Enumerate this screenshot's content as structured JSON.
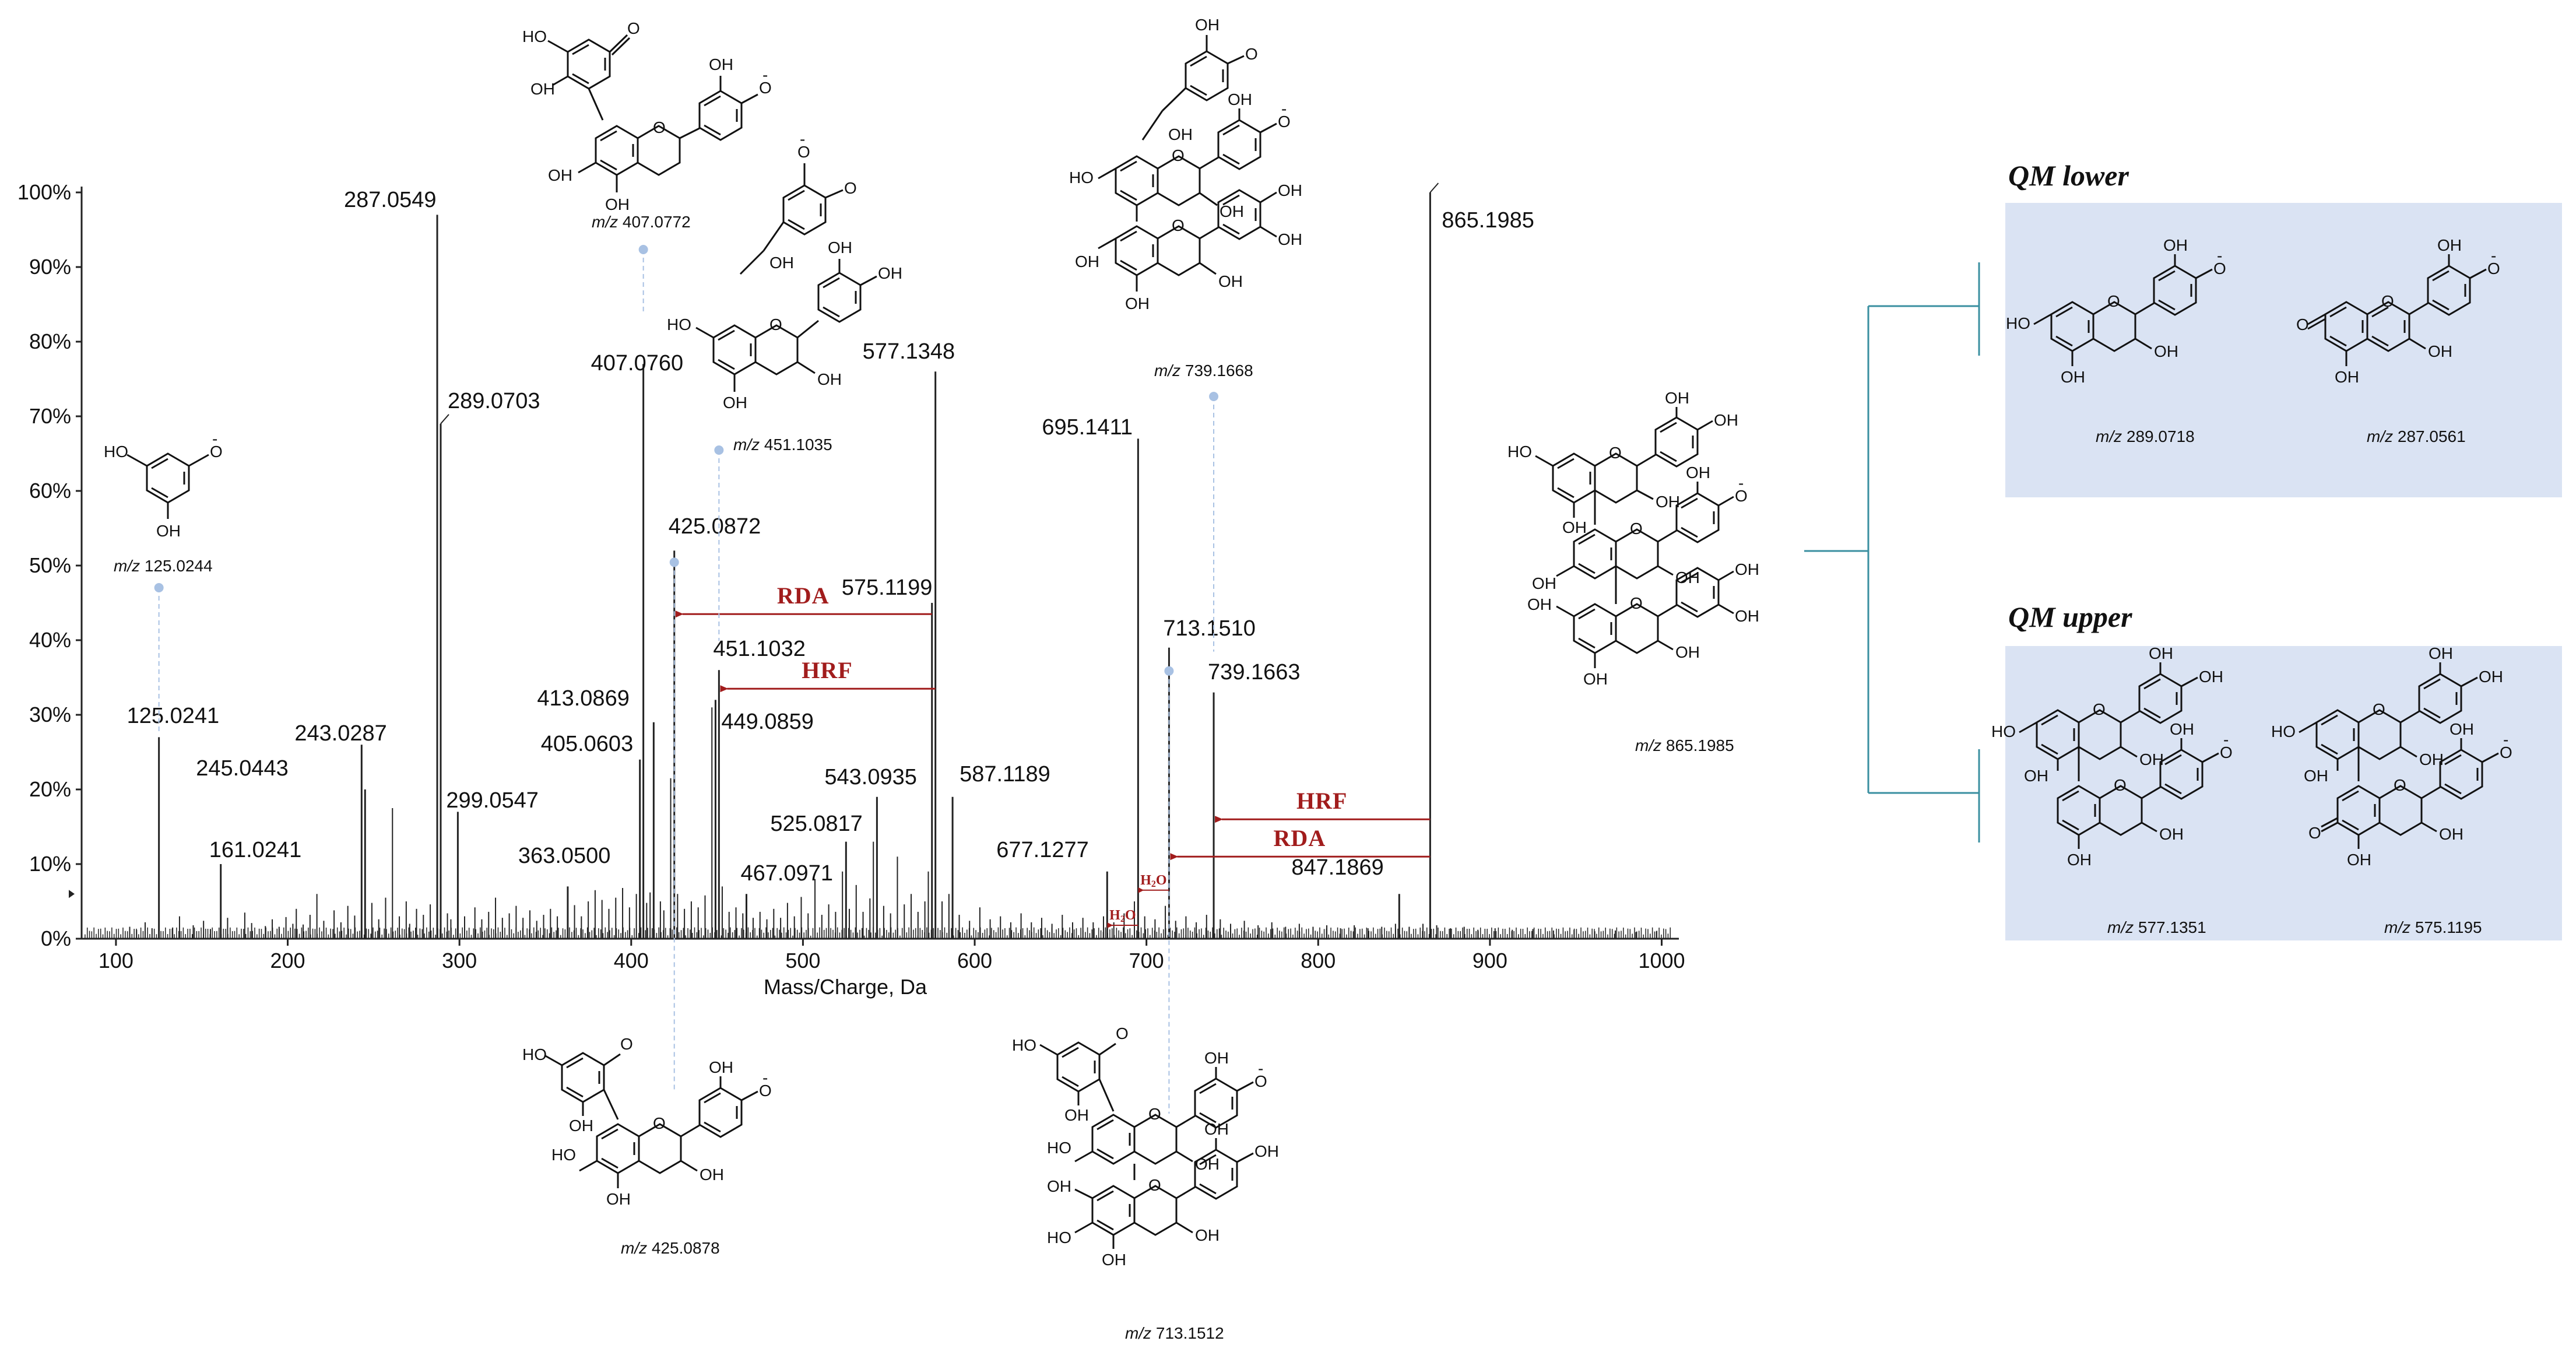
{
  "chart_data": {
    "type": "bar",
    "xlabel": "Mass/Charge, Da",
    "ylabel": "",
    "xlim": [
      80,
      1010
    ],
    "ylim": [
      0,
      100
    ],
    "x_ticks": [
      "100",
      "200",
      "300",
      "400",
      "500",
      "600",
      "700",
      "800",
      "900",
      "1000"
    ],
    "y_ticks": [
      "0%",
      "10%",
      "20%",
      "30%",
      "40%",
      "50%",
      "60%",
      "70%",
      "80%",
      "90%",
      "100%"
    ],
    "peaks": [
      {
        "mz": 125.0241,
        "label": "125.0241",
        "intensity": 27
      },
      {
        "mz": 161.0241,
        "label": "161.0241",
        "intensity": 10
      },
      {
        "mz": 243.0287,
        "label": "243.0287",
        "intensity": 26
      },
      {
        "mz": 245.0443,
        "label": "245.0443",
        "intensity": 20
      },
      {
        "mz": 287.0549,
        "label": "287.0549",
        "intensity": 97
      },
      {
        "mz": 289.0703,
        "label": "289.0703",
        "intensity": 69
      },
      {
        "mz": 299.0547,
        "label": "299.0547",
        "intensity": 17
      },
      {
        "mz": 363.05,
        "label": "363.0500",
        "intensity": 7
      },
      {
        "mz": 405.0603,
        "label": "405.0603",
        "intensity": 24
      },
      {
        "mz": 407.076,
        "label": "407.0760",
        "intensity": 77
      },
      {
        "mz": 413.0869,
        "label": "413.0869",
        "intensity": 29
      },
      {
        "mz": 425.0872,
        "label": "425.0872",
        "intensity": 52
      },
      {
        "mz": 449.0859,
        "label": "449.0859",
        "intensity": 32
      },
      {
        "mz": 451.1032,
        "label": "451.1032",
        "intensity": 36
      },
      {
        "mz": 467.0971,
        "label": "467.0971",
        "intensity": 6
      },
      {
        "mz": 525.0817,
        "label": "525.0817",
        "intensity": 13
      },
      {
        "mz": 543.0935,
        "label": "543.0935",
        "intensity": 19
      },
      {
        "mz": 575.1199,
        "label": "575.1199",
        "intensity": 45
      },
      {
        "mz": 577.1348,
        "label": "577.1348",
        "intensity": 76
      },
      {
        "mz": 587.1189,
        "label": "587.1189",
        "intensity": 19
      },
      {
        "mz": 677.1277,
        "label": "677.1277",
        "intensity": 9
      },
      {
        "mz": 695.1411,
        "label": "695.1411",
        "intensity": 67
      },
      {
        "mz": 713.151,
        "label": "713.1510",
        "intensity": 39
      },
      {
        "mz": 739.1663,
        "label": "739.1663",
        "intensity": 33
      },
      {
        "mz": 847.1869,
        "label": "847.1869",
        "intensity": 6
      },
      {
        "mz": 865.1985,
        "label": "865.1985",
        "intensity": 100
      }
    ],
    "minor_peaks": [
      {
        "mz": 108,
        "intensity": 1.6
      },
      {
        "mz": 112,
        "intensity": 1.2
      },
      {
        "mz": 117,
        "intensity": 2.2
      },
      {
        "mz": 121,
        "intensity": 1.4
      },
      {
        "mz": 133,
        "intensity": 1.5
      },
      {
        "mz": 137,
        "intensity": 3.0
      },
      {
        "mz": 145,
        "intensity": 1.8
      },
      {
        "mz": 151,
        "intensity": 2.4
      },
      {
        "mz": 155,
        "intensity": 1.3
      },
      {
        "mz": 165,
        "intensity": 2.8
      },
      {
        "mz": 175,
        "intensity": 3.5
      },
      {
        "mz": 179,
        "intensity": 2.1
      },
      {
        "mz": 187,
        "intensity": 1.7
      },
      {
        "mz": 191,
        "intensity": 2.6
      },
      {
        "mz": 195,
        "intensity": 1.6
      },
      {
        "mz": 199,
        "intensity": 2.9
      },
      {
        "mz": 203,
        "intensity": 2.0
      },
      {
        "mz": 205,
        "intensity": 4.0
      },
      {
        "mz": 209,
        "intensity": 1.9
      },
      {
        "mz": 213,
        "intensity": 3.2
      },
      {
        "mz": 217,
        "intensity": 6.0
      },
      {
        "mz": 221,
        "intensity": 2.4
      },
      {
        "mz": 227,
        "intensity": 3.8
      },
      {
        "mz": 231,
        "intensity": 2.2
      },
      {
        "mz": 235,
        "intensity": 4.4
      },
      {
        "mz": 239,
        "intensity": 3.1
      },
      {
        "mz": 249,
        "intensity": 4.8
      },
      {
        "mz": 253,
        "intensity": 2.6
      },
      {
        "mz": 257,
        "intensity": 5.5
      },
      {
        "mz": 261,
        "intensity": 17.5
      },
      {
        "mz": 265,
        "intensity": 3.0
      },
      {
        "mz": 269,
        "intensity": 5.0
      },
      {
        "mz": 271,
        "intensity": 2.0
      },
      {
        "mz": 275,
        "intensity": 4.0
      },
      {
        "mz": 279,
        "intensity": 3.2
      },
      {
        "mz": 283,
        "intensity": 4.6
      },
      {
        "mz": 293,
        "intensity": 3.4
      },
      {
        "mz": 295,
        "intensity": 2.6
      },
      {
        "mz": 303,
        "intensity": 3.0
      },
      {
        "mz": 309,
        "intensity": 4.2
      },
      {
        "mz": 313,
        "intensity": 2.6
      },
      {
        "mz": 317,
        "intensity": 3.6
      },
      {
        "mz": 321,
        "intensity": 5.5
      },
      {
        "mz": 325,
        "intensity": 2.8
      },
      {
        "mz": 329,
        "intensity": 3.4
      },
      {
        "mz": 333,
        "intensity": 4.4
      },
      {
        "mz": 337,
        "intensity": 2.8
      },
      {
        "mz": 341,
        "intensity": 3.8
      },
      {
        "mz": 345,
        "intensity": 2.4
      },
      {
        "mz": 349,
        "intensity": 3.2
      },
      {
        "mz": 353,
        "intensity": 4.0
      },
      {
        "mz": 357,
        "intensity": 3.0
      },
      {
        "mz": 367,
        "intensity": 4.5
      },
      {
        "mz": 371,
        "intensity": 3.0
      },
      {
        "mz": 375,
        "intensity": 5.0
      },
      {
        "mz": 379,
        "intensity": 6.5
      },
      {
        "mz": 383,
        "intensity": 5.2
      },
      {
        "mz": 387,
        "intensity": 4.0
      },
      {
        "mz": 391,
        "intensity": 5.5
      },
      {
        "mz": 395,
        "intensity": 6.8
      },
      {
        "mz": 399,
        "intensity": 4.2
      },
      {
        "mz": 403,
        "intensity": 6.0
      },
      {
        "mz": 409,
        "intensity": 4.8
      },
      {
        "mz": 411,
        "intensity": 6.2
      },
      {
        "mz": 417,
        "intensity": 5.0
      },
      {
        "mz": 419,
        "intensity": 3.8
      },
      {
        "mz": 423,
        "intensity": 21.5
      },
      {
        "mz": 427,
        "intensity": 6.0
      },
      {
        "mz": 431,
        "intensity": 4.0
      },
      {
        "mz": 435,
        "intensity": 5.0
      },
      {
        "mz": 439,
        "intensity": 4.2
      },
      {
        "mz": 443,
        "intensity": 5.8
      },
      {
        "mz": 447,
        "intensity": 31
      },
      {
        "mz": 453,
        "intensity": 7.0
      },
      {
        "mz": 457,
        "intensity": 3.6
      },
      {
        "mz": 461,
        "intensity": 4.2
      },
      {
        "mz": 465,
        "intensity": 3.4
      },
      {
        "mz": 471,
        "intensity": 2.8
      },
      {
        "mz": 475,
        "intensity": 3.6
      },
      {
        "mz": 479,
        "intensity": 2.6
      },
      {
        "mz": 483,
        "intensity": 4.0
      },
      {
        "mz": 487,
        "intensity": 2.8
      },
      {
        "mz": 491,
        "intensity": 4.8
      },
      {
        "mz": 495,
        "intensity": 3.0
      },
      {
        "mz": 499,
        "intensity": 5.6
      },
      {
        "mz": 503,
        "intensity": 3.4
      },
      {
        "mz": 507,
        "intensity": 8.0
      },
      {
        "mz": 511,
        "intensity": 3.2
      },
      {
        "mz": 515,
        "intensity": 4.6
      },
      {
        "mz": 519,
        "intensity": 3.6
      },
      {
        "mz": 523,
        "intensity": 9.0
      },
      {
        "mz": 527,
        "intensity": 4.0
      },
      {
        "mz": 531,
        "intensity": 7.2
      },
      {
        "mz": 535,
        "intensity": 3.6
      },
      {
        "mz": 539,
        "intensity": 5.4
      },
      {
        "mz": 541,
        "intensity": 13
      },
      {
        "mz": 547,
        "intensity": 4.4
      },
      {
        "mz": 551,
        "intensity": 3.4
      },
      {
        "mz": 555,
        "intensity": 11
      },
      {
        "mz": 559,
        "intensity": 4.6
      },
      {
        "mz": 563,
        "intensity": 6.0
      },
      {
        "mz": 567,
        "intensity": 3.6
      },
      {
        "mz": 571,
        "intensity": 5.0
      },
      {
        "mz": 573,
        "intensity": 9.0
      },
      {
        "mz": 581,
        "intensity": 5.0
      },
      {
        "mz": 585,
        "intensity": 6.0
      },
      {
        "mz": 591,
        "intensity": 3.2
      },
      {
        "mz": 597,
        "intensity": 2.4
      },
      {
        "mz": 603,
        "intensity": 4.2
      },
      {
        "mz": 609,
        "intensity": 2.6
      },
      {
        "mz": 615,
        "intensity": 3.0
      },
      {
        "mz": 621,
        "intensity": 2.2
      },
      {
        "mz": 627,
        "intensity": 3.4
      },
      {
        "mz": 633,
        "intensity": 2.2
      },
      {
        "mz": 639,
        "intensity": 2.8
      },
      {
        "mz": 645,
        "intensity": 2.0
      },
      {
        "mz": 651,
        "intensity": 3.2
      },
      {
        "mz": 657,
        "intensity": 2.2
      },
      {
        "mz": 663,
        "intensity": 2.8
      },
      {
        "mz": 669,
        "intensity": 2.2
      },
      {
        "mz": 675,
        "intensity": 3.0
      },
      {
        "mz": 681,
        "intensity": 2.2
      },
      {
        "mz": 687,
        "intensity": 3.4
      },
      {
        "mz": 693,
        "intensity": 5.0
      },
      {
        "mz": 699,
        "intensity": 3.0
      },
      {
        "mz": 705,
        "intensity": 2.6
      },
      {
        "mz": 711,
        "intensity": 4.4
      },
      {
        "mz": 717,
        "intensity": 2.4
      },
      {
        "mz": 723,
        "intensity": 3.0
      },
      {
        "mz": 729,
        "intensity": 2.2
      },
      {
        "mz": 735,
        "intensity": 3.2
      },
      {
        "mz": 743,
        "intensity": 2.6
      },
      {
        "mz": 749,
        "intensity": 2.0
      },
      {
        "mz": 757,
        "intensity": 2.4
      },
      {
        "mz": 765,
        "intensity": 1.8
      },
      {
        "mz": 773,
        "intensity": 2.2
      },
      {
        "mz": 781,
        "intensity": 1.6
      },
      {
        "mz": 789,
        "intensity": 2.0
      },
      {
        "mz": 797,
        "intensity": 1.6
      },
      {
        "mz": 805,
        "intensity": 1.8
      },
      {
        "mz": 813,
        "intensity": 1.4
      },
      {
        "mz": 821,
        "intensity": 1.8
      },
      {
        "mz": 829,
        "intensity": 1.4
      },
      {
        "mz": 837,
        "intensity": 1.6
      },
      {
        "mz": 845,
        "intensity": 2.0
      },
      {
        "mz": 853,
        "intensity": 1.6
      },
      {
        "mz": 861,
        "intensity": 2.0
      },
      {
        "mz": 869,
        "intensity": 1.8
      },
      {
        "mz": 877,
        "intensity": 1.4
      },
      {
        "mz": 885,
        "intensity": 1.6
      },
      {
        "mz": 893,
        "intensity": 1.2
      },
      {
        "mz": 903,
        "intensity": 1.4
      },
      {
        "mz": 913,
        "intensity": 1.2
      },
      {
        "mz": 925,
        "intensity": 1.3
      },
      {
        "mz": 937,
        "intensity": 1.1
      },
      {
        "mz": 949,
        "intensity": 1.2
      },
      {
        "mz": 961,
        "intensity": 1.0
      },
      {
        "mz": 973,
        "intensity": 1.1
      },
      {
        "mz": 985,
        "intensity": 0.9
      },
      {
        "mz": 997,
        "intensity": 1.0
      }
    ],
    "fragmentation_arrows": [
      {
        "label": "RDA",
        "from_mz": 575.1199,
        "to_mz": 425.0872,
        "at_intensity": 43.5
      },
      {
        "label": "HRF",
        "from_mz": 577.1348,
        "to_mz": 451.1032,
        "at_intensity": 33.5
      },
      {
        "label": "HRF",
        "from_mz": 865.1985,
        "to_mz": 739.1663,
        "at_intensity": 16
      },
      {
        "label": "RDA",
        "from_mz": 865.1985,
        "to_mz": 713.151,
        "at_intensity": 11
      },
      {
        "label": "H2O",
        "from_mz": 713.151,
        "to_mz": 695.1411,
        "at_intensity": 6.5
      },
      {
        "label": "H2O",
        "from_mz": 695.1411,
        "to_mz": 677.1277,
        "at_intensity": 1.8
      }
    ]
  },
  "structures": {
    "s125": {
      "mz_prefix": "m/z",
      "mz_value": "125.0244"
    },
    "s407": {
      "mz_prefix": "m/z",
      "mz_value": "407.0772"
    },
    "s451": {
      "mz_prefix": "m/z",
      "mz_value": "451.1035"
    },
    "s739": {
      "mz_prefix": "m/z",
      "mz_value": "739.1668"
    },
    "s865": {
      "mz_prefix": "m/z",
      "mz_value": "865.1985"
    },
    "s425": {
      "mz_prefix": "m/z",
      "mz_value": "425.0878"
    },
    "s713": {
      "mz_prefix": "m/z",
      "mz_value": "713.1512"
    },
    "s289": {
      "mz_prefix": "m/z",
      "mz_value": "289.0718"
    },
    "s287": {
      "mz_prefix": "m/z",
      "mz_value": "287.0561"
    },
    "s577": {
      "mz_prefix": "m/z",
      "mz_value": "577.1351"
    },
    "s575": {
      "mz_prefix": "m/z",
      "mz_value": "575.1195"
    }
  },
  "substituents": {
    "hydroxyl": "OH",
    "hydroxyl_left": "HO",
    "oxide": "O",
    "oxide_charge": "-",
    "ring_oxygen": "O"
  },
  "panels": {
    "lower_title": "QM lower",
    "upper_title": "QM upper"
  },
  "colors": {
    "spectrum": "#222222",
    "arrow_red": "#a11c1c",
    "guide_blue": "#a8c1e3",
    "panel_fill": "#dae3f3",
    "bracket": "#3a8fa0"
  }
}
